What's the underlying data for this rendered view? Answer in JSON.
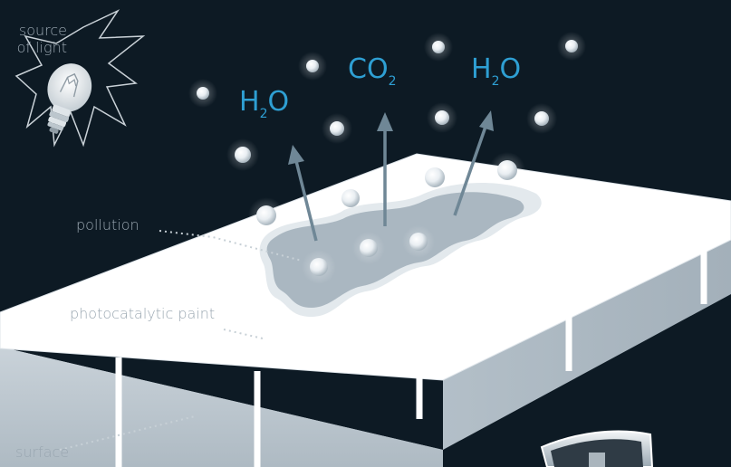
{
  "labels": {
    "source_line1": "source",
    "source_line2": "of light",
    "pollution": "pollution",
    "paint": "photocatalytic paint",
    "surface": "surface"
  },
  "molecules": {
    "left": {
      "a": "H",
      "sub": "2",
      "b": "O"
    },
    "center": {
      "a": "CO",
      "sub": "2",
      "b": ""
    },
    "right": {
      "a": "H",
      "sub": "2",
      "b": "O"
    }
  },
  "colors": {
    "background": "#0d1a24",
    "molecule_text": "#2e9fd3",
    "label_text": "#9aa7b1",
    "slab_top": "#ffffff",
    "slab_side": "#b9c4cc",
    "pollution": "#aab7c1",
    "arrow": "#6f8796"
  },
  "icons": {
    "light_source": "light-bulb-icon",
    "particles": "oxygen-radical-sphere",
    "corner_badge": "shield-badge-icon"
  }
}
